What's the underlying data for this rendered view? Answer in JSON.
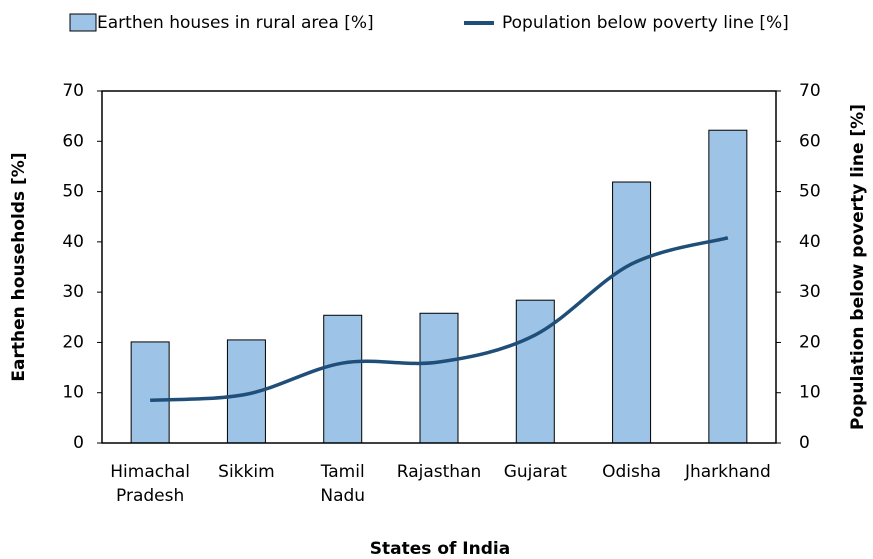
{
  "chart_data": {
    "type": "bar_line",
    "categories": [
      "Himachal Pradesh",
      "Sikkim",
      "Tamil Nadu",
      "Rajasthan",
      "Gujarat",
      "Odisha",
      "Jharkhand"
    ],
    "series": [
      {
        "name": "Earthen houses in rural area [%]",
        "color": "#9dc3e6",
        "type": "bar",
        "values": [
          20.1,
          20.5,
          25.4,
          25.8,
          28.4,
          51.9,
          62.2
        ]
      },
      {
        "name": "Population below poverty line [%]",
        "color": "#1f4e79",
        "type": "line",
        "axis": "y2",
        "values": [
          8.5,
          9.7,
          15.9,
          16.1,
          21.5,
          35.6,
          40.8
        ]
      }
    ],
    "xlabel": "States of India",
    "ylabel": "Earthen households [%]",
    "y2label": "Population below poverty line [%]",
    "ylim": [
      0,
      70
    ],
    "yticks": [
      0,
      10,
      20,
      30,
      40,
      50,
      60,
      70
    ],
    "y2lim": [
      0,
      70
    ],
    "y2ticks": [
      0,
      10,
      20,
      30,
      40,
      50,
      60,
      70
    ],
    "legend": "top"
  }
}
